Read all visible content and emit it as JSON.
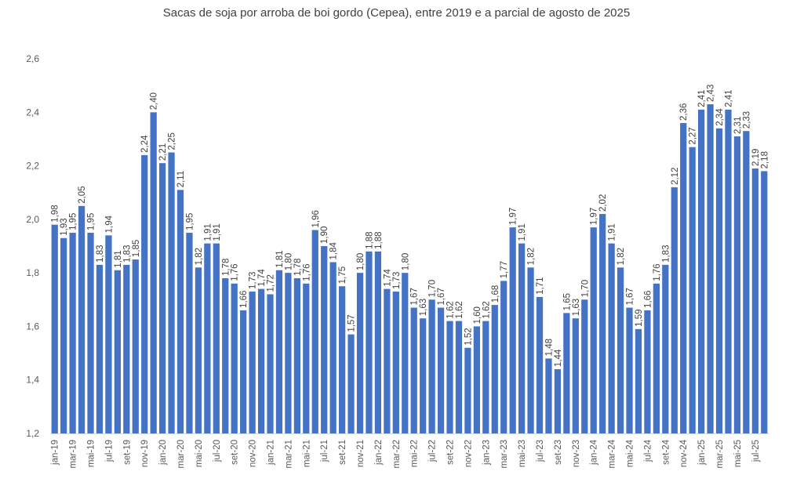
{
  "chart_data": {
    "type": "bar",
    "title": "Sacas de soja por arroba de boi gordo (Cepea), entre 2019 e a parcial de agosto de 2025",
    "xlabel": "",
    "ylabel": "",
    "ylim": [
      1.2,
      2.6
    ],
    "yticks": [
      "1,2",
      "1,4",
      "1,6",
      "1,8",
      "2,0",
      "2,2",
      "2,4",
      "2,6"
    ],
    "grid": false,
    "legend": "none",
    "bar_color": "#4472C4",
    "categories": [
      "jan-19",
      "fev-19",
      "mar-19",
      "abr-19",
      "mai-19",
      "jun-19",
      "jul-19",
      "ago-19",
      "set-19",
      "out-19",
      "nov-19",
      "dez-19",
      "jan-20",
      "fev-20",
      "mar-20",
      "abr-20",
      "mai-20",
      "jun-20",
      "jul-20",
      "ago-20",
      "set-20",
      "out-20",
      "nov-20",
      "dez-20",
      "jan-21",
      "fev-21",
      "mar-21",
      "abr-21",
      "mai-21",
      "jun-21",
      "jul-21",
      "ago-21",
      "set-21",
      "out-21",
      "nov-21",
      "dez-21",
      "jan-22",
      "fev-22",
      "mar-22",
      "abr-22",
      "mai-22",
      "jun-22",
      "jul-22",
      "ago-22",
      "set-22",
      "out-22",
      "nov-22",
      "dez-22",
      "jan-23",
      "fev-23",
      "mar-23",
      "abr-23",
      "mai-23",
      "jun-23",
      "jul-23",
      "ago-23",
      "set-23",
      "out-23",
      "nov-23",
      "dez-23",
      "jan-24",
      "fev-24",
      "mar-24",
      "abr-24",
      "mai-24",
      "jun-24",
      "jul-24",
      "ago-24",
      "set-24",
      "out-24",
      "nov-24",
      "dez-24",
      "jan-25",
      "fev-25",
      "mar-25",
      "abr-25",
      "mai-25",
      "jun-25",
      "jul-25",
      "ago-25"
    ],
    "xtick_labels": [
      "jan-19",
      "mar-19",
      "mai-19",
      "jul-19",
      "set-19",
      "nov-19",
      "jan-20",
      "mar-20",
      "mai-20",
      "jul-20",
      "set-20",
      "nov-20",
      "jan-21",
      "mar-21",
      "mai-21",
      "jul-21",
      "set-21",
      "nov-21",
      "jan-22",
      "mar-22",
      "mai-22",
      "jul-22",
      "set-22",
      "nov-22",
      "jan-23",
      "mar-23",
      "mai-23",
      "jul-23",
      "set-23",
      "nov-23",
      "jan-24",
      "mar-24",
      "mai-24",
      "jul-24",
      "set-24",
      "nov-24",
      "jan-25",
      "mar-25",
      "mai-25",
      "jul-25"
    ],
    "values": [
      1.98,
      1.93,
      1.95,
      2.05,
      1.95,
      1.83,
      1.94,
      1.81,
      1.83,
      1.85,
      2.24,
      2.4,
      2.21,
      2.25,
      2.11,
      1.95,
      1.82,
      1.91,
      1.91,
      1.78,
      1.76,
      1.66,
      1.73,
      1.74,
      1.72,
      1.81,
      1.8,
      1.78,
      1.76,
      1.96,
      1.9,
      1.84,
      1.75,
      1.57,
      1.8,
      1.88,
      1.88,
      1.74,
      1.73,
      1.8,
      1.67,
      1.63,
      1.7,
      1.67,
      1.62,
      1.62,
      1.52,
      1.6,
      1.62,
      1.68,
      1.77,
      1.97,
      1.91,
      1.82,
      1.71,
      1.48,
      1.44,
      1.65,
      1.63,
      1.7,
      1.97,
      2.02,
      1.91,
      1.82,
      1.67,
      1.59,
      1.66,
      1.76,
      1.83,
      2.12,
      2.36,
      2.27,
      2.41,
      2.43,
      2.34,
      2.41,
      2.31,
      2.33,
      2.19,
      2.18
    ],
    "value_labels": [
      "1,98",
      "1,93",
      "1,95",
      "2,05",
      "1,95",
      "1,83",
      "1,94",
      "1,81",
      "1,83",
      "1,85",
      "2,24",
      "2,40",
      "2,21",
      "2,25",
      "2,11",
      "1,95",
      "1,82",
      "1,91",
      "1,91",
      "1,78",
      "1,76",
      "1,66",
      "1,73",
      "1,74",
      "1,72",
      "1,81",
      "1,80",
      "1,78",
      "1,76",
      "1,96",
      "1,90",
      "1,84",
      "1,75",
      "1,57",
      "1,80",
      "1,88",
      "1,88",
      "1,74",
      "1,73",
      "1,80",
      "1,67",
      "1,63",
      "1,70",
      "1,67",
      "1,62",
      "1,62",
      "1,52",
      "1,60",
      "1,62",
      "1,68",
      "1,77",
      "1,97",
      "1,91",
      "1,82",
      "1,71",
      "1,48",
      "1,44",
      "1,65",
      "1,63",
      "1,70",
      "1,97",
      "2,02",
      "1,91",
      "1,82",
      "1,67",
      "1,59",
      "1,66",
      "1,76",
      "1,83",
      "2,12",
      "2,36",
      "2,27",
      "2,41",
      "2,43",
      "2,34",
      "2,41",
      "2,31",
      "2,33",
      "2,19",
      "2,18"
    ]
  }
}
